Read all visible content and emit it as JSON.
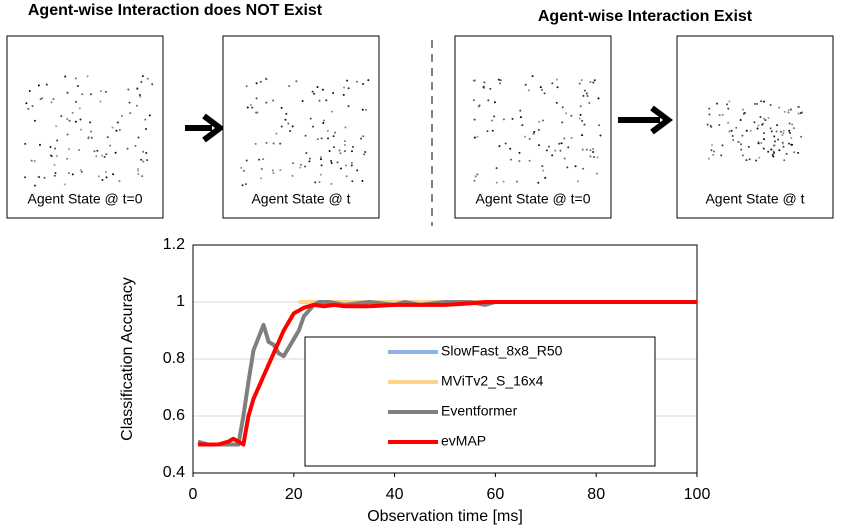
{
  "header": {
    "left_title": "Agent-wise Interaction does NOT Exist",
    "right_title": "Agent-wise Interaction Exist"
  },
  "panels": [
    {
      "label": "Agent State @ t=0"
    },
    {
      "label": "Agent State @ t"
    },
    {
      "label": "Agent State @ t=0"
    },
    {
      "label": "Agent State @ t"
    }
  ],
  "chart_data": {
    "type": "line",
    "xlabel": "Observation time [ms]",
    "ylabel": "Classification Accuracy",
    "xlim": [
      0,
      100
    ],
    "ylim": [
      0.4,
      1.2
    ],
    "xticks": [
      0,
      20,
      40,
      60,
      80,
      100
    ],
    "yticks": [
      0.4,
      0.6,
      0.8,
      1,
      1.2
    ],
    "grid": true,
    "series": [
      {
        "name": "SlowFast_8x8_R50",
        "color": "#8eb4e3",
        "x": [
          21,
          60
        ],
        "values": [
          1,
          1
        ]
      },
      {
        "name": "MViTv2_S_16x4",
        "color": "#ffd28a",
        "x": [
          21,
          60
        ],
        "values": [
          1,
          1
        ]
      },
      {
        "name": "Eventformer",
        "color": "#7f7f7f",
        "x": [
          1,
          3,
          5,
          7,
          9,
          10,
          11,
          12,
          14,
          15,
          16,
          17,
          18,
          19,
          20,
          21,
          22,
          24,
          25,
          27,
          30,
          35,
          40,
          42,
          45,
          50,
          55,
          58,
          60
        ],
        "values": [
          0.51,
          0.5,
          0.5,
          0.5,
          0.5,
          0.6,
          0.72,
          0.83,
          0.92,
          0.86,
          0.85,
          0.82,
          0.81,
          0.84,
          0.87,
          0.9,
          0.95,
          0.99,
          1,
          1,
          0.99,
          1,
          0.99,
          1,
          0.99,
          1,
          1,
          0.99,
          1
        ]
      },
      {
        "name": "evMAP",
        "color": "#ff0000",
        "x": [
          1,
          3,
          5,
          7,
          8,
          9,
          10,
          11,
          12,
          13,
          14,
          15,
          16,
          17,
          18,
          19,
          20,
          22,
          24,
          26,
          28,
          30,
          35,
          40,
          45,
          50,
          55,
          58,
          60,
          100
        ],
        "values": [
          0.5,
          0.5,
          0.5,
          0.51,
          0.52,
          0.51,
          0.5,
          0.6,
          0.66,
          0.7,
          0.74,
          0.78,
          0.82,
          0.86,
          0.9,
          0.93,
          0.96,
          0.98,
          0.99,
          0.985,
          0.99,
          0.985,
          0.985,
          0.99,
          0.99,
          0.99,
          0.995,
          1,
          1,
          1
        ]
      }
    ]
  }
}
